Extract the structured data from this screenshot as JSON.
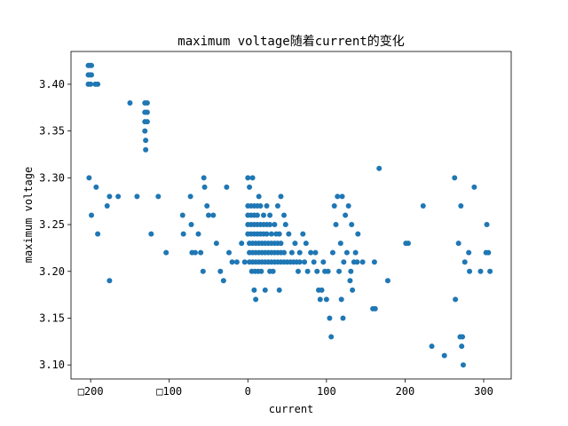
{
  "chart_data": {
    "type": "scatter",
    "title": "maximum voltage随着current的变化",
    "xlabel": "current",
    "ylabel": "maximum voltage",
    "xlim": [
      -225,
      335
    ],
    "ylim": [
      3.085,
      3.435
    ],
    "xticks": [
      {
        "value": -200,
        "label": "□200"
      },
      {
        "value": -100,
        "label": "□100"
      },
      {
        "value": 0,
        "label": "0"
      },
      {
        "value": 100,
        "label": "100"
      },
      {
        "value": 200,
        "label": "200"
      },
      {
        "value": 300,
        "label": "300"
      }
    ],
    "yticks": [
      {
        "value": 3.1,
        "label": "3.10"
      },
      {
        "value": 3.15,
        "label": "3.15"
      },
      {
        "value": 3.2,
        "label": "3.20"
      },
      {
        "value": 3.25,
        "label": "3.25"
      },
      {
        "value": 3.3,
        "label": "3.30"
      },
      {
        "value": 3.35,
        "label": "3.35"
      },
      {
        "value": 3.4,
        "label": "3.40"
      }
    ],
    "grid": false,
    "marker_color": "#1f77b4",
    "points": [
      [
        -203,
        3.42
      ],
      [
        -201,
        3.42
      ],
      [
        -199,
        3.42
      ],
      [
        -203,
        3.41
      ],
      [
        -201,
        3.41
      ],
      [
        -199,
        3.41
      ],
      [
        -203,
        3.4
      ],
      [
        -200,
        3.4
      ],
      [
        -194,
        3.4
      ],
      [
        -191,
        3.4
      ],
      [
        -202,
        3.3
      ],
      [
        -199,
        3.26
      ],
      [
        -193,
        3.29
      ],
      [
        -191,
        3.24
      ],
      [
        -179,
        3.27
      ],
      [
        -176,
        3.28
      ],
      [
        -176,
        3.19
      ],
      [
        -165,
        3.28
      ],
      [
        -150,
        3.38
      ],
      [
        -141,
        3.28
      ],
      [
        -131,
        3.38
      ],
      [
        -128,
        3.38
      ],
      [
        -131,
        3.37
      ],
      [
        -128,
        3.37
      ],
      [
        -131,
        3.36
      ],
      [
        -128,
        3.36
      ],
      [
        -131,
        3.35
      ],
      [
        -130,
        3.34
      ],
      [
        -130,
        3.33
      ],
      [
        -123,
        3.24
      ],
      [
        -114,
        3.28
      ],
      [
        -104,
        3.22
      ],
      [
        -83,
        3.26
      ],
      [
        -82,
        3.24
      ],
      [
        -73,
        3.28
      ],
      [
        -72,
        3.25
      ],
      [
        -71,
        3.22
      ],
      [
        -67,
        3.22
      ],
      [
        -63,
        3.24
      ],
      [
        -60,
        3.22
      ],
      [
        -57,
        3.2
      ],
      [
        -56,
        3.3
      ],
      [
        -55,
        3.29
      ],
      [
        -52,
        3.27
      ],
      [
        -50,
        3.26
      ],
      [
        -44,
        3.26
      ],
      [
        -40,
        3.23
      ],
      [
        -35,
        3.2
      ],
      [
        -31,
        3.19
      ],
      [
        -27,
        3.29
      ],
      [
        -24,
        3.22
      ],
      [
        -20,
        3.21
      ],
      [
        -14,
        3.21
      ],
      [
        -8,
        3.23
      ],
      [
        -4,
        3.21
      ],
      [
        0,
        3.3
      ],
      [
        2,
        3.29
      ],
      [
        6,
        3.3
      ],
      [
        0,
        3.27
      ],
      [
        4,
        3.27
      ],
      [
        8,
        3.27
      ],
      [
        12,
        3.27
      ],
      [
        0,
        3.26
      ],
      [
        4,
        3.26
      ],
      [
        8,
        3.26
      ],
      [
        12,
        3.26
      ],
      [
        0,
        3.25
      ],
      [
        4,
        3.25
      ],
      [
        8,
        3.25
      ],
      [
        12,
        3.25
      ],
      [
        16,
        3.25
      ],
      [
        20,
        3.25
      ],
      [
        24,
        3.25
      ],
      [
        28,
        3.25
      ],
      [
        34,
        3.25
      ],
      [
        0,
        3.24
      ],
      [
        4,
        3.24
      ],
      [
        8,
        3.24
      ],
      [
        12,
        3.24
      ],
      [
        16,
        3.24
      ],
      [
        20,
        3.24
      ],
      [
        24,
        3.24
      ],
      [
        30,
        3.24
      ],
      [
        36,
        3.24
      ],
      [
        40,
        3.24
      ],
      [
        2,
        3.23
      ],
      [
        6,
        3.23
      ],
      [
        10,
        3.23
      ],
      [
        14,
        3.23
      ],
      [
        18,
        3.23
      ],
      [
        22,
        3.23
      ],
      [
        26,
        3.23
      ],
      [
        30,
        3.23
      ],
      [
        34,
        3.23
      ],
      [
        38,
        3.23
      ],
      [
        42,
        3.23
      ],
      [
        2,
        3.22
      ],
      [
        6,
        3.22
      ],
      [
        10,
        3.22
      ],
      [
        14,
        3.22
      ],
      [
        18,
        3.22
      ],
      [
        22,
        3.22
      ],
      [
        26,
        3.22
      ],
      [
        30,
        3.22
      ],
      [
        34,
        3.22
      ],
      [
        38,
        3.22
      ],
      [
        42,
        3.22
      ],
      [
        46,
        3.22
      ],
      [
        2,
        3.21
      ],
      [
        6,
        3.21
      ],
      [
        10,
        3.21
      ],
      [
        14,
        3.21
      ],
      [
        18,
        3.21
      ],
      [
        22,
        3.21
      ],
      [
        26,
        3.21
      ],
      [
        30,
        3.21
      ],
      [
        34,
        3.21
      ],
      [
        38,
        3.21
      ],
      [
        42,
        3.21
      ],
      [
        46,
        3.21
      ],
      [
        50,
        3.21
      ],
      [
        54,
        3.21
      ],
      [
        58,
        3.21
      ],
      [
        62,
        3.21
      ],
      [
        66,
        3.21
      ],
      [
        5,
        3.2
      ],
      [
        9,
        3.2
      ],
      [
        13,
        3.2
      ],
      [
        17,
        3.2
      ],
      [
        28,
        3.2
      ],
      [
        32,
        3.2
      ],
      [
        8,
        3.18
      ],
      [
        10,
        3.17
      ],
      [
        22,
        3.18
      ],
      [
        40,
        3.18
      ],
      [
        14,
        3.28
      ],
      [
        16,
        3.27
      ],
      [
        20,
        3.26
      ],
      [
        24,
        3.27
      ],
      [
        28,
        3.26
      ],
      [
        38,
        3.27
      ],
      [
        42,
        3.28
      ],
      [
        46,
        3.26
      ],
      [
        48,
        3.25
      ],
      [
        52,
        3.24
      ],
      [
        56,
        3.22
      ],
      [
        60,
        3.23
      ],
      [
        64,
        3.2
      ],
      [
        66,
        3.22
      ],
      [
        70,
        3.24
      ],
      [
        72,
        3.21
      ],
      [
        74,
        3.23
      ],
      [
        76,
        3.2
      ],
      [
        80,
        3.22
      ],
      [
        84,
        3.21
      ],
      [
        86,
        3.22
      ],
      [
        88,
        3.2
      ],
      [
        90,
        3.18
      ],
      [
        92,
        3.17
      ],
      [
        94,
        3.18
      ],
      [
        96,
        3.21
      ],
      [
        98,
        3.2
      ],
      [
        100,
        3.17
      ],
      [
        102,
        3.2
      ],
      [
        104,
        3.15
      ],
      [
        106,
        3.13
      ],
      [
        108,
        3.22
      ],
      [
        110,
        3.27
      ],
      [
        112,
        3.25
      ],
      [
        114,
        3.28
      ],
      [
        116,
        3.2
      ],
      [
        118,
        3.23
      ],
      [
        119,
        3.17
      ],
      [
        120,
        3.28
      ],
      [
        121,
        3.15
      ],
      [
        122,
        3.21
      ],
      [
        124,
        3.26
      ],
      [
        126,
        3.22
      ],
      [
        128,
        3.27
      ],
      [
        130,
        3.19
      ],
      [
        131,
        3.2
      ],
      [
        132,
        3.25
      ],
      [
        133,
        3.18
      ],
      [
        135,
        3.21
      ],
      [
        137,
        3.22
      ],
      [
        139,
        3.21
      ],
      [
        140,
        3.24
      ],
      [
        146,
        3.21
      ],
      [
        159,
        3.16
      ],
      [
        161,
        3.21
      ],
      [
        162,
        3.16
      ],
      [
        167,
        3.31
      ],
      [
        178,
        3.19
      ],
      [
        201,
        3.23
      ],
      [
        204,
        3.23
      ],
      [
        223,
        3.27
      ],
      [
        234,
        3.12
      ],
      [
        250,
        3.11
      ],
      [
        263,
        3.3
      ],
      [
        264,
        3.17
      ],
      [
        268,
        3.23
      ],
      [
        270,
        3.13
      ],
      [
        271,
        3.27
      ],
      [
        272,
        3.12
      ],
      [
        273,
        3.13
      ],
      [
        274,
        3.1
      ],
      [
        276,
        3.21
      ],
      [
        281,
        3.22
      ],
      [
        282,
        3.2
      ],
      [
        288,
        3.29
      ],
      [
        296,
        3.2
      ],
      [
        303,
        3.22
      ],
      [
        304,
        3.25
      ],
      [
        306,
        3.22
      ],
      [
        308,
        3.2
      ]
    ]
  }
}
